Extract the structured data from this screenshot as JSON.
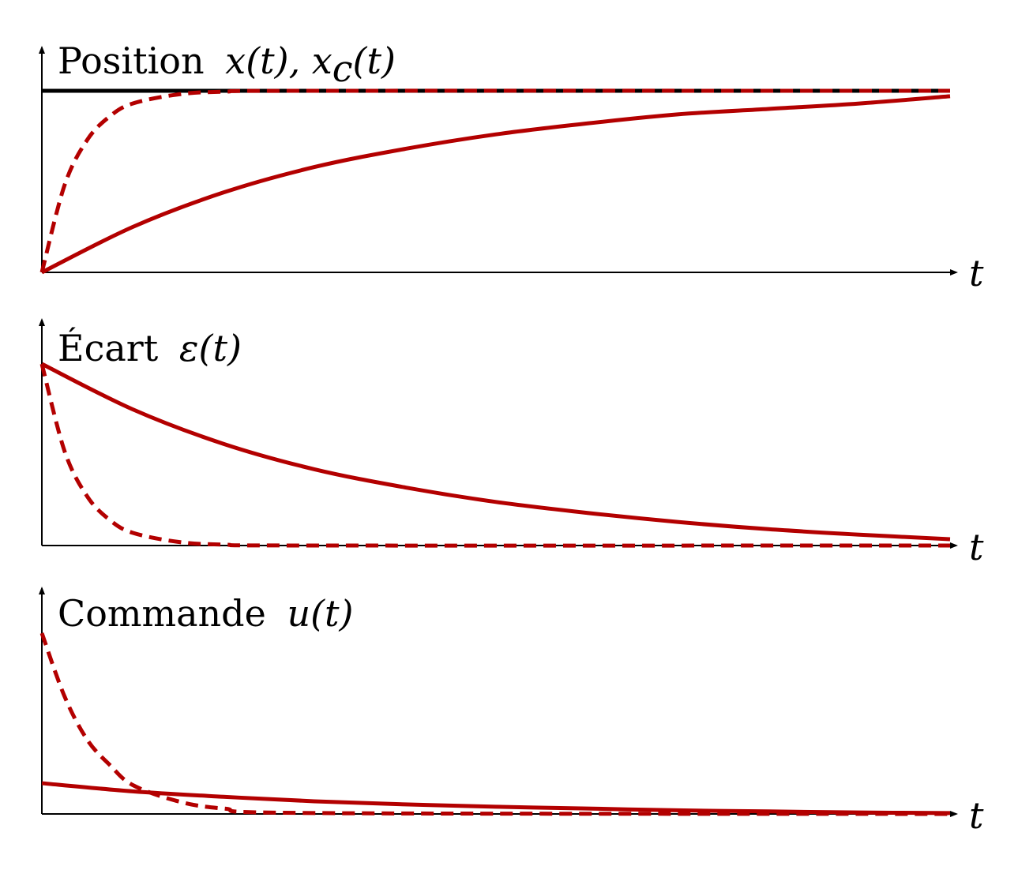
{
  "colors": {
    "axis": "#000000",
    "setpoint": "#000000",
    "series": "#b30000"
  },
  "chart_data": [
    {
      "type": "line",
      "title": "Position x(t), x_c(t)",
      "title_parts": {
        "word": "Position",
        "math": "x(t), x",
        "sub": "c",
        "math_tail": "(t)"
      },
      "xlabel": "t",
      "ylabel": "",
      "xlim": [
        0,
        10
      ],
      "ylim": [
        0,
        1
      ],
      "grid": false,
      "series": [
        {
          "style": "solid",
          "color": "#000000",
          "points": [
            [
              0,
              1
            ],
            [
              10,
              1
            ]
          ]
        },
        {
          "style": "dashed",
          "color": "#b30000",
          "points": [
            [
              0,
              0
            ],
            [
              0.25,
              0.48
            ],
            [
              0.5,
              0.73
            ],
            [
              0.75,
              0.86
            ],
            [
              1,
              0.93
            ],
            [
              1.5,
              0.98
            ],
            [
              2,
              0.995
            ],
            [
              3,
              1.0
            ],
            [
              10,
              1.0
            ]
          ]
        },
        {
          "style": "solid",
          "color": "#b30000",
          "points": [
            [
              0,
              0
            ],
            [
              1,
              0.25
            ],
            [
              2,
              0.44
            ],
            [
              3,
              0.58
            ],
            [
              4,
              0.68
            ],
            [
              5,
              0.76
            ],
            [
              6,
              0.82
            ],
            [
              7,
              0.87
            ],
            [
              8,
              0.9
            ],
            [
              9,
              0.93
            ],
            [
              10,
              0.97
            ]
          ]
        }
      ]
    },
    {
      "type": "line",
      "title": "Écart ε(t)",
      "title_parts": {
        "word": "Écart",
        "math": "ε(t)"
      },
      "xlabel": "t",
      "ylabel": "",
      "xlim": [
        0,
        10
      ],
      "ylim": [
        0,
        1
      ],
      "grid": false,
      "series": [
        {
          "style": "dashed",
          "color": "#b30000",
          "points": [
            [
              0,
              1
            ],
            [
              0.25,
              0.52
            ],
            [
              0.5,
              0.27
            ],
            [
              0.75,
              0.14
            ],
            [
              1,
              0.07
            ],
            [
              1.5,
              0.02
            ],
            [
              2,
              0.005
            ],
            [
              3,
              0.0
            ],
            [
              10,
              0.0
            ]
          ]
        },
        {
          "style": "solid",
          "color": "#b30000",
          "points": [
            [
              0,
              1
            ],
            [
              1,
              0.75
            ],
            [
              2,
              0.56
            ],
            [
              3,
              0.42
            ],
            [
              4,
              0.32
            ],
            [
              5,
              0.24
            ],
            [
              6,
              0.18
            ],
            [
              7,
              0.13
            ],
            [
              8,
              0.09
            ],
            [
              9,
              0.06
            ],
            [
              10,
              0.035
            ]
          ]
        }
      ]
    },
    {
      "type": "line",
      "title": "Commande u(t)",
      "title_parts": {
        "word": "Commande",
        "math": "u(t)"
      },
      "xlabel": "t",
      "ylabel": "",
      "xlim": [
        0,
        10
      ],
      "ylim": [
        0,
        1
      ],
      "grid": false,
      "series": [
        {
          "style": "dashed",
          "color": "#b30000",
          "points": [
            [
              0,
              1
            ],
            [
              0.25,
              0.65
            ],
            [
              0.5,
              0.41
            ],
            [
              0.75,
              0.27
            ],
            [
              1,
              0.16
            ],
            [
              1.5,
              0.07
            ],
            [
              2,
              0.03
            ],
            [
              3,
              0.005
            ],
            [
              10,
              0.0
            ]
          ]
        },
        {
          "style": "solid",
          "color": "#b30000",
          "points": [
            [
              0,
              0.17
            ],
            [
              1,
              0.125
            ],
            [
              2,
              0.095
            ],
            [
              3,
              0.07
            ],
            [
              4,
              0.053
            ],
            [
              5,
              0.04
            ],
            [
              6,
              0.03
            ],
            [
              7,
              0.02
            ],
            [
              8,
              0.014
            ],
            [
              9,
              0.008
            ],
            [
              10,
              0.005
            ]
          ]
        }
      ]
    }
  ]
}
